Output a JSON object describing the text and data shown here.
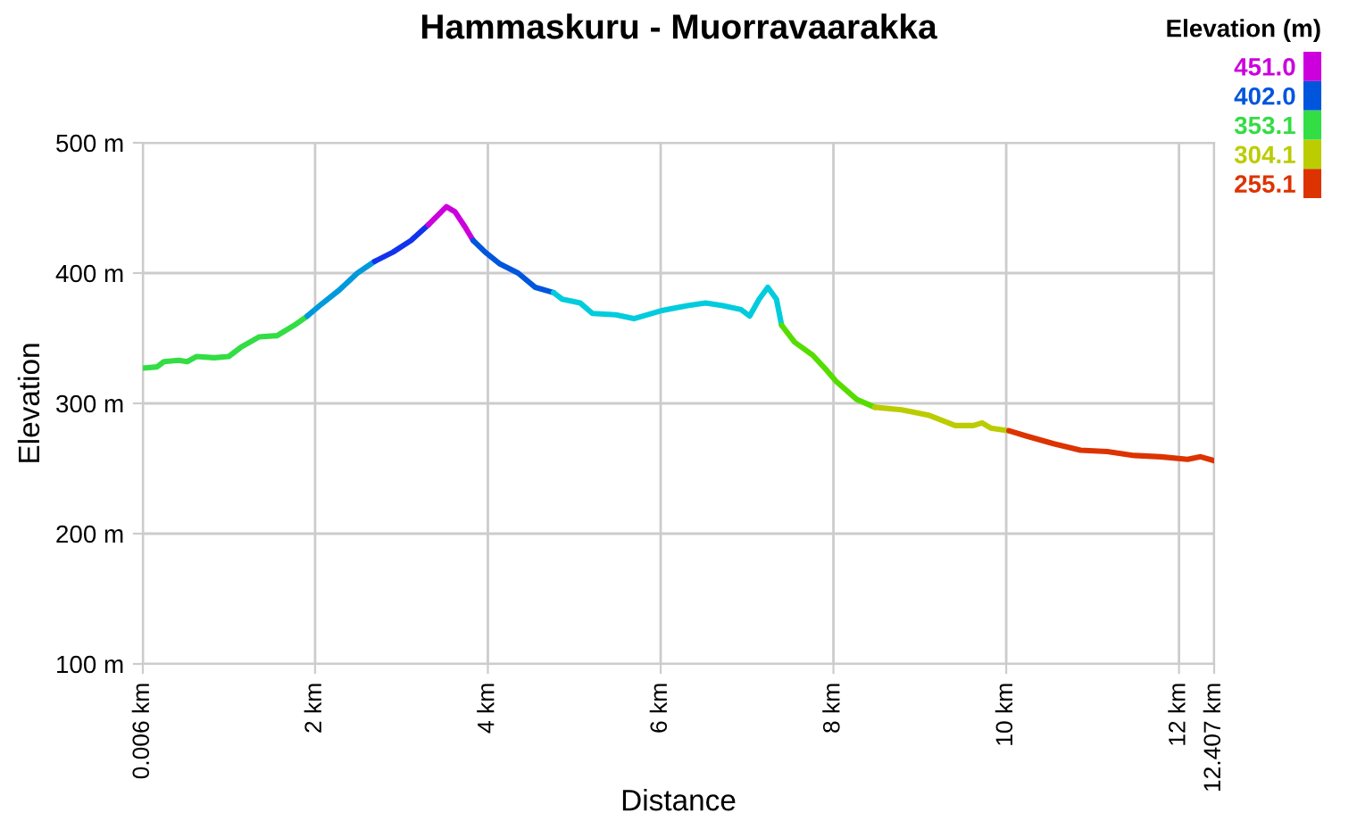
{
  "chart_data": {
    "type": "line",
    "title": "Hammaskuru - Muorravaarakka",
    "xlabel": "Distance",
    "ylabel": "Elevation",
    "clabel": "Elevation (m)",
    "series": [
      {
        "color": "#33dd44",
        "x": [
          0.006,
          0.17,
          0.25,
          0.42,
          0.52,
          0.63,
          0.83,
          1.0,
          1.14,
          1.35,
          1.56,
          1.76,
          1.91
        ],
        "values": [
          327,
          328,
          332,
          333,
          332,
          336,
          335,
          336,
          343,
          351,
          352,
          360,
          367
        ]
      },
      {
        "color": "#0099dd",
        "x": [
          1.91,
          2.07,
          2.28,
          2.49,
          2.69
        ],
        "values": [
          367,
          376,
          387,
          400,
          409
        ]
      },
      {
        "color": "#1133ee",
        "x": [
          2.69,
          2.9,
          3.11,
          3.31
        ],
        "values": [
          409,
          416,
          425,
          437
        ]
      },
      {
        "color": "#cc00dd",
        "x": [
          3.31,
          3.52,
          3.62,
          3.73,
          3.83
        ],
        "values": [
          437,
          451,
          447,
          436,
          425
        ]
      },
      {
        "color": "#0055dd",
        "x": [
          3.83,
          3.97,
          4.14,
          4.35,
          4.55,
          4.76
        ],
        "values": [
          425,
          416,
          407,
          400,
          389,
          385
        ]
      },
      {
        "color": "#00ccdd",
        "x": [
          4.76,
          4.86,
          5.07,
          5.21,
          5.48,
          5.69,
          6.0,
          6.31,
          6.52,
          6.72,
          6.93,
          7.03,
          7.14,
          7.24,
          7.34,
          7.4
        ],
        "values": [
          385,
          380,
          377,
          369,
          368,
          365,
          371,
          375,
          377,
          375,
          372,
          367,
          380,
          389,
          380,
          360
        ]
      },
      {
        "color": "#55dd00",
        "x": [
          7.4,
          7.55,
          7.76,
          7.9,
          8.03,
          8.27,
          8.48
        ],
        "values": [
          360,
          347,
          337,
          327,
          317,
          303,
          297
        ]
      },
      {
        "color": "#bbcc00",
        "x": [
          8.48,
          8.79,
          9.1,
          9.41,
          9.62,
          9.72,
          9.82,
          10.03
        ],
        "values": [
          297,
          295,
          291,
          283,
          283,
          285,
          281,
          279
        ]
      },
      {
        "color": "#dd3300",
        "x": [
          10.03,
          10.23,
          10.55,
          10.86,
          11.17,
          11.48,
          11.79,
          12.1,
          12.25,
          12.407
        ],
        "values": [
          279,
          275,
          269,
          264,
          263,
          260,
          259,
          257,
          259,
          256
        ]
      }
    ],
    "cticks": [
      {
        "value": 451.0,
        "label": "451.0"
      },
      {
        "value": 402.0,
        "label": "402.0"
      },
      {
        "value": 353.1,
        "label": "353.1"
      },
      {
        "value": 304.1,
        "label": "304.1"
      },
      {
        "value": 255.1,
        "label": "255.1"
      }
    ],
    "xlim": [
      0.006,
      12.407
    ],
    "xticks": [
      {
        "value": 0.006,
        "label": "0.006 km"
      },
      {
        "value": 2,
        "label": "2 km"
      },
      {
        "value": 4,
        "label": "4 km"
      },
      {
        "value": 6,
        "label": "6 km"
      },
      {
        "value": 8,
        "label": "8 km"
      },
      {
        "value": 10,
        "label": "10 km"
      },
      {
        "value": 12,
        "label": "12 km"
      },
      {
        "value": 12.407,
        "label": "12.407 km"
      }
    ],
    "ylim": [
      100,
      500
    ],
    "yticks": [
      {
        "value": 100,
        "label": "100 m"
      },
      {
        "value": 200,
        "label": "200 m"
      },
      {
        "value": 300,
        "label": "300 m"
      },
      {
        "value": 400,
        "label": "400 m"
      },
      {
        "value": 500,
        "label": "500 m"
      }
    ],
    "grid": true
  }
}
